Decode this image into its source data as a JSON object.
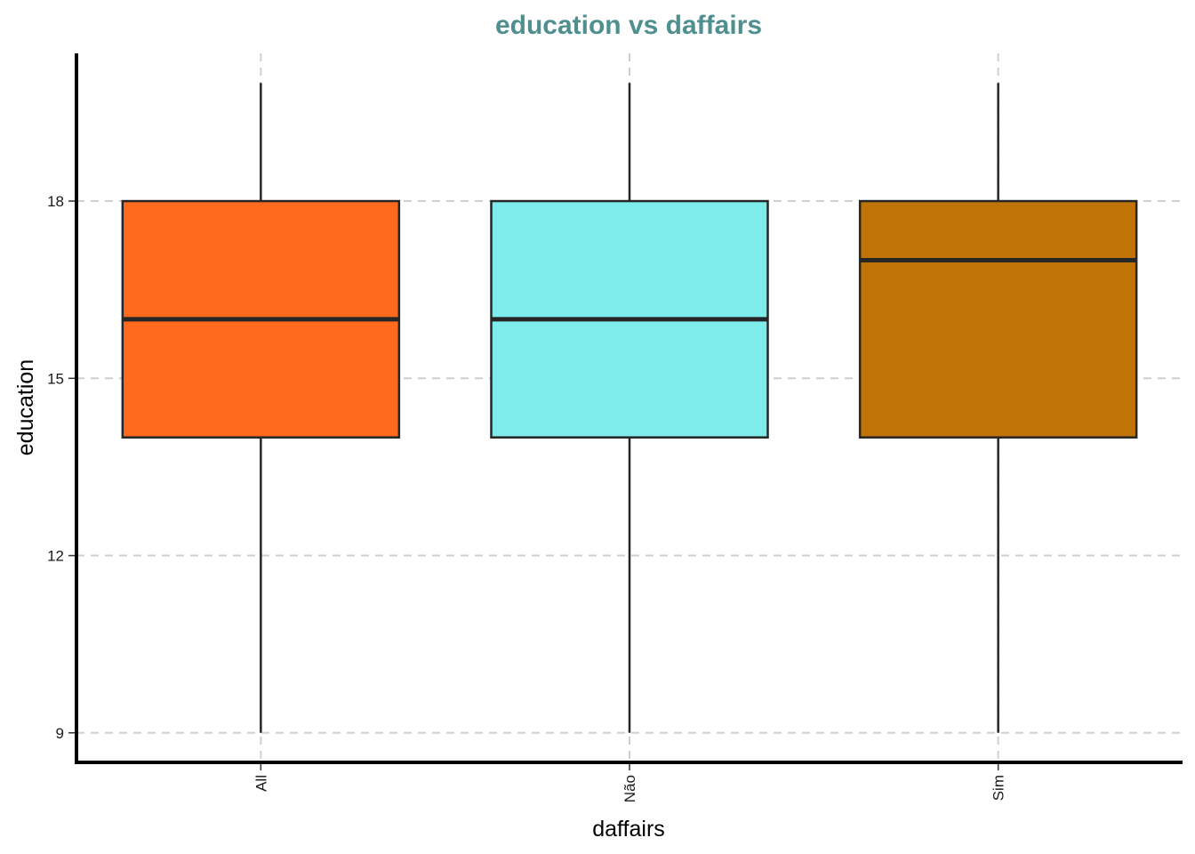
{
  "chart_data": {
    "type": "box",
    "title": "education vs daffairs",
    "xlabel": "daffairs",
    "ylabel": "education",
    "ylim": [
      8.5,
      20.5
    ],
    "yticks": [
      9,
      12,
      15,
      18
    ],
    "grid": "horizontal and vertical, dashed",
    "legend": "none",
    "categories": [
      "All",
      "Não",
      "Sim"
    ],
    "boxes": [
      {
        "category": "All",
        "whisker_low": 9,
        "q1": 14,
        "median": 16,
        "q3": 18,
        "whisker_high": 20,
        "color": "#ff6a1e"
      },
      {
        "category": "Não",
        "whisker_low": 9,
        "q1": 14,
        "median": 16,
        "q3": 18,
        "whisker_high": 20,
        "color": "#7eeceb"
      },
      {
        "category": "Sim",
        "whisker_low": 9,
        "q1": 14,
        "median": 17,
        "q3": 18,
        "whisker_high": 20,
        "color": "#c07306"
      }
    ]
  }
}
